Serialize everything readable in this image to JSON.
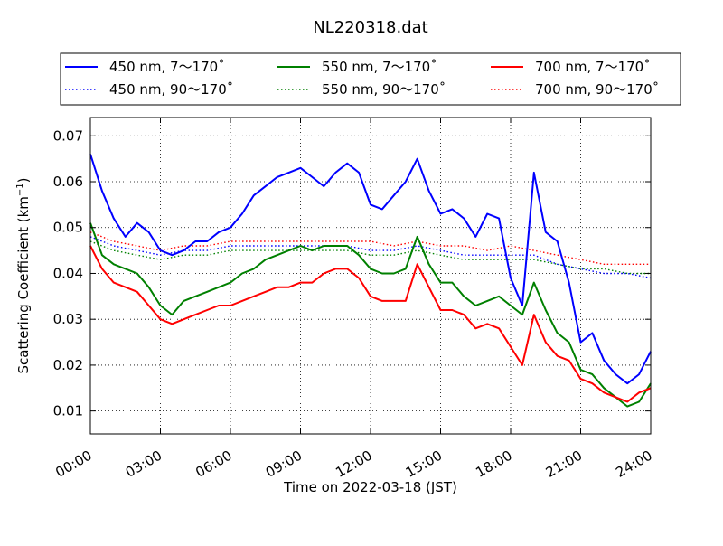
{
  "chart_data": {
    "type": "line",
    "title": "NL220318.dat",
    "xlabel": "Time on 2022-03-18 (JST)",
    "ylabel": "Scattering Coefficient (km",
    "ylabel_sup": "−1",
    "ylabel_close": ")",
    "xlim": [
      0,
      24
    ],
    "ylim": [
      0.005,
      0.074
    ],
    "x_ticks": [
      0,
      3,
      6,
      9,
      12,
      15,
      18,
      21,
      24
    ],
    "x_tick_labels": [
      "00:00",
      "03:00",
      "06:00",
      "09:00",
      "12:00",
      "15:00",
      "18:00",
      "21:00",
      "24:00"
    ],
    "y_ticks": [
      0.01,
      0.02,
      0.03,
      0.04,
      0.05,
      0.06,
      0.07
    ],
    "y_tick_labels": [
      "0.01",
      "0.02",
      "0.03",
      "0.04",
      "0.05",
      "0.06",
      "0.07"
    ],
    "grid": true,
    "legend_position": "top, above plot",
    "legend_columns": 3,
    "colors": {
      "blue": "#0000ff",
      "green": "#008000",
      "red": "#ff0000"
    },
    "series": [
      {
        "name": "450 nm, 7～170˚",
        "color": "#0000ff",
        "style": "solid",
        "x": [
          0,
          0.5,
          1,
          1.5,
          2,
          2.5,
          3,
          3.5,
          4,
          4.5,
          5,
          5.5,
          6,
          6.5,
          7,
          7.5,
          8,
          8.5,
          9,
          9.5,
          10,
          10.5,
          11,
          11.5,
          12,
          12.5,
          13,
          13.5,
          14,
          14.5,
          15,
          15.5,
          16,
          16.5,
          17,
          17.5,
          18,
          18.5,
          19,
          19.5,
          20,
          20.5,
          21,
          21.5,
          22,
          22.5,
          23,
          23.5,
          24
        ],
        "y": [
          0.066,
          0.058,
          0.052,
          0.048,
          0.051,
          0.049,
          0.045,
          0.044,
          0.045,
          0.047,
          0.047,
          0.049,
          0.05,
          0.053,
          0.057,
          0.059,
          0.061,
          0.062,
          0.063,
          0.061,
          0.059,
          0.062,
          0.064,
          0.062,
          0.055,
          0.054,
          0.057,
          0.06,
          0.065,
          0.058,
          0.053,
          0.054,
          0.052,
          0.048,
          0.053,
          0.052,
          0.039,
          0.033,
          0.062,
          0.049,
          0.047,
          0.038,
          0.025,
          0.027,
          0.021,
          0.018,
          0.016,
          0.018,
          0.023
        ]
      },
      {
        "name": "550 nm, 7～170˚",
        "color": "#008000",
        "style": "solid",
        "x": [
          0,
          0.5,
          1,
          1.5,
          2,
          2.5,
          3,
          3.5,
          4,
          4.5,
          5,
          5.5,
          6,
          6.5,
          7,
          7.5,
          8,
          8.5,
          9,
          9.5,
          10,
          10.5,
          11,
          11.5,
          12,
          12.5,
          13,
          13.5,
          14,
          14.5,
          15,
          15.5,
          16,
          16.5,
          17,
          17.5,
          18,
          18.5,
          19,
          19.5,
          20,
          20.5,
          21,
          21.5,
          22,
          22.5,
          23,
          23.5,
          24
        ],
        "y": [
          0.051,
          0.044,
          0.042,
          0.041,
          0.04,
          0.037,
          0.033,
          0.031,
          0.034,
          0.035,
          0.036,
          0.037,
          0.038,
          0.04,
          0.041,
          0.043,
          0.044,
          0.045,
          0.046,
          0.045,
          0.046,
          0.046,
          0.046,
          0.044,
          0.041,
          0.04,
          0.04,
          0.041,
          0.048,
          0.042,
          0.038,
          0.038,
          0.035,
          0.033,
          0.034,
          0.035,
          0.033,
          0.031,
          0.038,
          0.032,
          0.027,
          0.025,
          0.019,
          0.018,
          0.015,
          0.013,
          0.011,
          0.012,
          0.016
        ]
      },
      {
        "name": "700 nm, 7～170˚",
        "color": "#ff0000",
        "style": "solid",
        "x": [
          0,
          0.5,
          1,
          1.5,
          2,
          2.5,
          3,
          3.5,
          4,
          4.5,
          5,
          5.5,
          6,
          6.5,
          7,
          7.5,
          8,
          8.5,
          9,
          9.5,
          10,
          10.5,
          11,
          11.5,
          12,
          12.5,
          13,
          13.5,
          14,
          14.5,
          15,
          15.5,
          16,
          16.5,
          17,
          17.5,
          18,
          18.5,
          19,
          19.5,
          20,
          20.5,
          21,
          21.5,
          22,
          22.5,
          23,
          23.5,
          24
        ],
        "y": [
          0.046,
          0.041,
          0.038,
          0.037,
          0.036,
          0.033,
          0.03,
          0.029,
          0.03,
          0.031,
          0.032,
          0.033,
          0.033,
          0.034,
          0.035,
          0.036,
          0.037,
          0.037,
          0.038,
          0.038,
          0.04,
          0.041,
          0.041,
          0.039,
          0.035,
          0.034,
          0.034,
          0.034,
          0.042,
          0.037,
          0.032,
          0.032,
          0.031,
          0.028,
          0.029,
          0.028,
          0.024,
          0.02,
          0.031,
          0.025,
          0.022,
          0.021,
          0.017,
          0.016,
          0.014,
          0.013,
          0.012,
          0.014,
          0.015
        ]
      },
      {
        "name": "450 nm, 90～170˚",
        "color": "#0000ff",
        "style": "dotted",
        "x": [
          0,
          1,
          2,
          3,
          4,
          5,
          6,
          7,
          8,
          9,
          10,
          11,
          12,
          13,
          14,
          15,
          16,
          17,
          18,
          19,
          20,
          21,
          22,
          23,
          24
        ],
        "y": [
          0.048,
          0.046,
          0.045,
          0.044,
          0.045,
          0.045,
          0.046,
          0.046,
          0.046,
          0.046,
          0.046,
          0.046,
          0.045,
          0.045,
          0.046,
          0.045,
          0.044,
          0.044,
          0.044,
          0.044,
          0.042,
          0.041,
          0.04,
          0.04,
          0.039
        ]
      },
      {
        "name": "550 nm, 90～170˚",
        "color": "#008000",
        "style": "dotted",
        "x": [
          0,
          1,
          2,
          3,
          4,
          5,
          6,
          7,
          8,
          9,
          10,
          11,
          12,
          13,
          14,
          15,
          16,
          17,
          18,
          19,
          20,
          21,
          22,
          23,
          24
        ],
        "y": [
          0.047,
          0.045,
          0.044,
          0.043,
          0.044,
          0.044,
          0.045,
          0.045,
          0.045,
          0.045,
          0.045,
          0.045,
          0.044,
          0.044,
          0.045,
          0.044,
          0.043,
          0.043,
          0.043,
          0.043,
          0.042,
          0.041,
          0.041,
          0.04,
          0.04
        ]
      },
      {
        "name": "700 nm, 90～170˚",
        "color": "#ff0000",
        "style": "dotted",
        "x": [
          0,
          1,
          2,
          3,
          4,
          5,
          6,
          7,
          8,
          9,
          10,
          11,
          12,
          13,
          14,
          15,
          16,
          17,
          18,
          19,
          20,
          21,
          22,
          23,
          24
        ],
        "y": [
          0.049,
          0.047,
          0.046,
          0.045,
          0.046,
          0.046,
          0.047,
          0.047,
          0.047,
          0.047,
          0.047,
          0.047,
          0.047,
          0.046,
          0.047,
          0.046,
          0.046,
          0.045,
          0.046,
          0.045,
          0.044,
          0.043,
          0.042,
          0.042,
          0.042
        ]
      }
    ]
  }
}
